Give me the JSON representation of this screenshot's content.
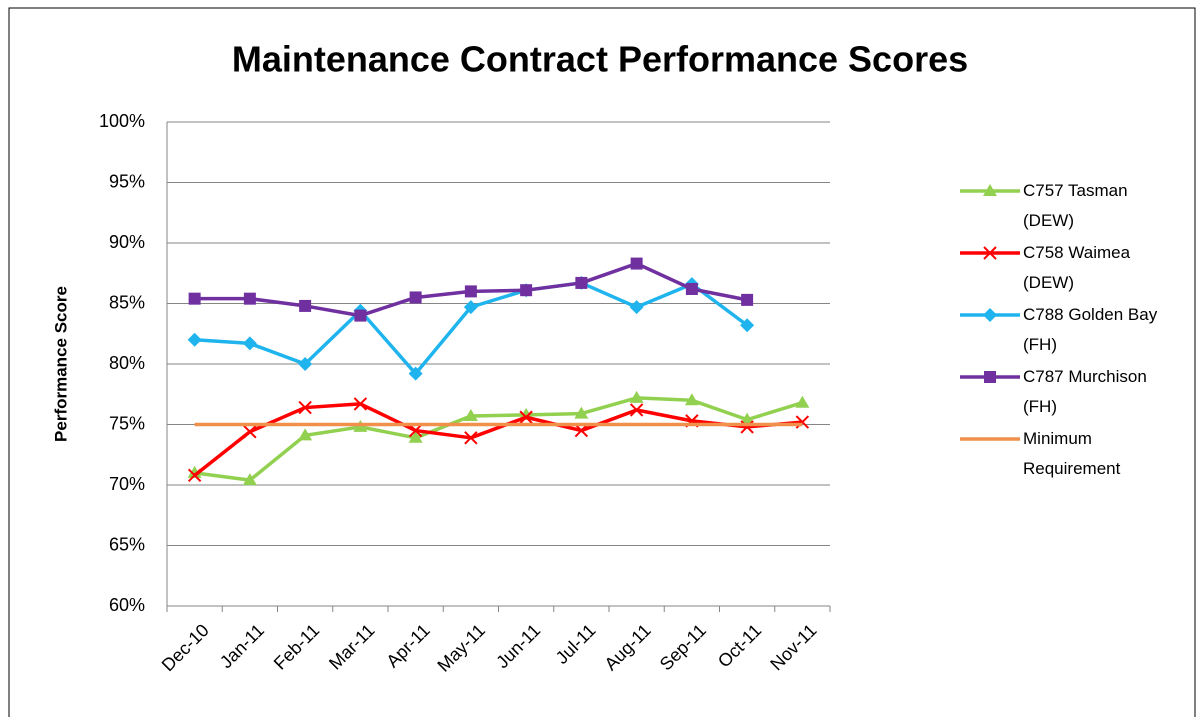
{
  "chart_data": {
    "type": "line",
    "title": "Maintenance Contract Performance Scores",
    "y_label": "Performance Score",
    "categories": [
      "Dec-10",
      "Jan-11",
      "Feb-11",
      "Mar-11",
      "Apr-11",
      "May-11",
      "Jun-11",
      "Jul-11",
      "Aug-11",
      "Sep-11",
      "Oct-11",
      "Nov-11"
    ],
    "series": [
      {
        "name": "C757 Tasman (DEW)",
        "color": "#92d050",
        "marker": "triangle",
        "values": [
          71.0,
          70.4,
          74.1,
          74.8,
          73.9,
          75.7,
          75.8,
          75.9,
          77.2,
          77.0,
          75.4,
          76.8
        ]
      },
      {
        "name": "C758 Waimea (DEW)",
        "color": "#ff0000",
        "marker": "x",
        "values": [
          70.8,
          74.4,
          76.4,
          76.7,
          74.5,
          73.9,
          75.6,
          74.5,
          76.2,
          75.3,
          74.8,
          75.2
        ]
      },
      {
        "name": "C788 Golden Bay (FH)",
        "color": "#1fb4ee",
        "marker": "diamond",
        "values": [
          82.0,
          81.7,
          80.0,
          84.4,
          79.2,
          84.7,
          86.1,
          86.7,
          84.7,
          86.6,
          83.2,
          null
        ]
      },
      {
        "name": "C787 Murchison (FH)",
        "color": "#7030a0",
        "marker": "square",
        "values": [
          85.4,
          85.4,
          84.8,
          84.0,
          85.5,
          86.0,
          86.1,
          86.7,
          88.3,
          86.2,
          85.3,
          null
        ]
      },
      {
        "name": "Minimum Requirement",
        "color": "#f0904a",
        "marker": "none",
        "values": [
          75,
          75,
          75,
          75,
          75,
          75,
          75,
          75,
          75,
          75,
          75,
          75
        ]
      }
    ],
    "ylim": [
      60,
      100
    ],
    "yticks": [
      {
        "value": 60,
        "label": "60%"
      },
      {
        "value": 65,
        "label": "65%"
      },
      {
        "value": 70,
        "label": "70%"
      },
      {
        "value": 75,
        "label": "75%"
      },
      {
        "value": 80,
        "label": "80%"
      },
      {
        "value": 85,
        "label": "85%"
      },
      {
        "value": 90,
        "label": "90%"
      },
      {
        "value": 95,
        "label": "95%"
      },
      {
        "value": 100,
        "label": "100%"
      }
    ],
    "grid": true,
    "legend": "right"
  }
}
